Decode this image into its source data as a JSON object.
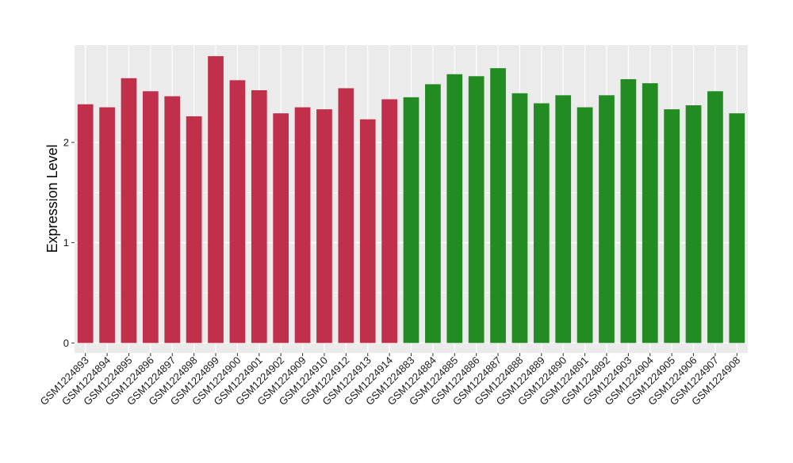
{
  "chart_data": {
    "type": "bar",
    "title": "",
    "xlabel": "",
    "ylabel": "Expression Level",
    "ylim": [
      -0.1,
      2.97
    ],
    "yticks": [
      0,
      1,
      2
    ],
    "grid": true,
    "legend": "none",
    "colors": {
      "group_1": "#c0304a",
      "group_2": "#228b22",
      "panel_bg": "#ebebeb",
      "grid": "#ffffff"
    },
    "categories": [
      "GSM1224893",
      "GSM1224894",
      "GSM1224895",
      "GSM1224896",
      "GSM1224897",
      "GSM1224898",
      "GSM1224899",
      "GSM1224900",
      "GSM1224901",
      "GSM1224902",
      "GSM1224909",
      "GSM1224910",
      "GSM1224912",
      "GSM1224913",
      "GSM1224914",
      "GSM1224883",
      "GSM1224884",
      "GSM1224885",
      "GSM1224886",
      "GSM1224887",
      "GSM1224888",
      "GSM1224889",
      "GSM1224890",
      "GSM1224891",
      "GSM1224892",
      "GSM1224903",
      "GSM1224904",
      "GSM1224905",
      "GSM1224906",
      "GSM1224907",
      "GSM1224908"
    ],
    "values": [
      2.38,
      2.35,
      2.64,
      2.51,
      2.46,
      2.26,
      2.86,
      2.62,
      2.52,
      2.29,
      2.35,
      2.33,
      2.54,
      2.23,
      2.43,
      2.45,
      2.58,
      2.68,
      2.66,
      2.74,
      2.49,
      2.39,
      2.47,
      2.35,
      2.47,
      2.63,
      2.59,
      2.33,
      2.37,
      2.51,
      2.29
    ],
    "groups": [
      1,
      1,
      1,
      1,
      1,
      1,
      1,
      1,
      1,
      1,
      1,
      1,
      1,
      1,
      1,
      2,
      2,
      2,
      2,
      2,
      2,
      2,
      2,
      2,
      2,
      2,
      2,
      2,
      2,
      2,
      2
    ]
  }
}
